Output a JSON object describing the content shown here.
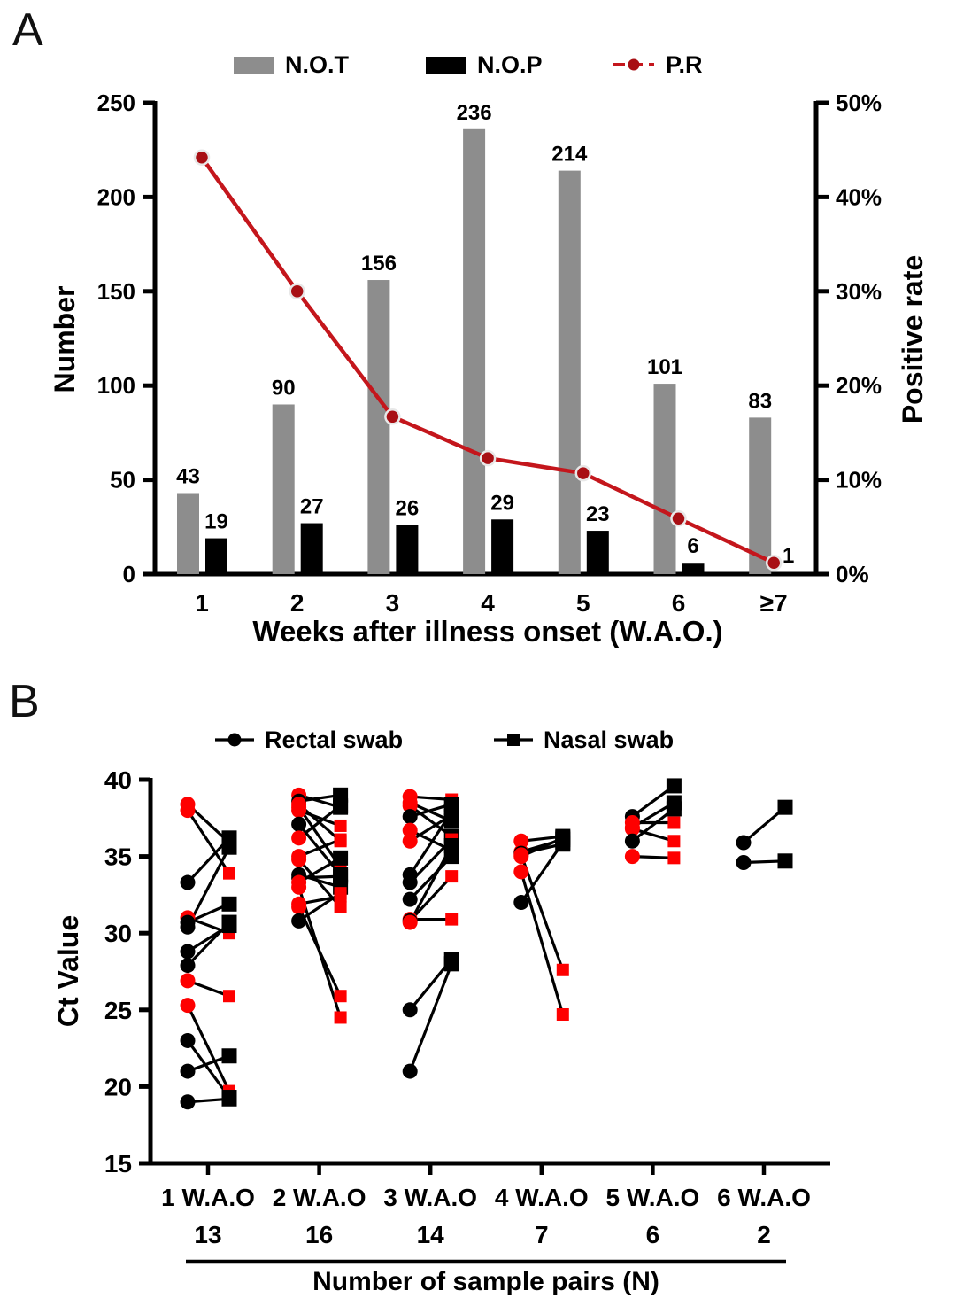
{
  "figure": {
    "panel_a": {
      "label": "A",
      "legend": {
        "not_label": "N.O.T",
        "nop_label": "N.O.P",
        "pr_label": "P.R"
      },
      "colors": {
        "not_bar": "#8D8D8D",
        "nop_bar": "#000000",
        "pr_line": "#C4161C",
        "pr_marker": "#A80F14",
        "pr_marker_ring": "#E8E8E8"
      }
    },
    "panel_b": {
      "label": "B",
      "legend": {
        "rectal_label": "Rectal swab",
        "nasal_label": "Nasal swab"
      },
      "colors": {
        "black": "#000000",
        "red": "#FE0000"
      }
    }
  },
  "chart_data": [
    {
      "id": "panel_a",
      "type": "bar",
      "categories": [
        "1",
        "2",
        "3",
        "4",
        "5",
        "6",
        "≥7"
      ],
      "series": [
        {
          "name": "N.O.T",
          "type": "bar",
          "color": "#8D8D8D",
          "values": [
            43,
            90,
            156,
            236,
            214,
            101,
            83
          ]
        },
        {
          "name": "N.O.P",
          "type": "bar",
          "color": "#000000",
          "values": [
            19,
            27,
            26,
            29,
            23,
            6,
            1
          ]
        },
        {
          "name": "P.R",
          "type": "line",
          "axis": "right",
          "color": "#C4161C",
          "values_pct": [
            44.2,
            30.0,
            16.7,
            12.3,
            10.7,
            5.9,
            1.2
          ]
        }
      ],
      "ylabel": "Number",
      "ylim": [
        0,
        250
      ],
      "yticks": [
        0,
        50,
        100,
        150,
        200,
        250
      ],
      "y2label": "Positive rate",
      "y2lim": [
        0,
        50
      ],
      "y2ticks": [
        {
          "value": 0,
          "label": "0%"
        },
        {
          "value": 10,
          "label": "10%"
        },
        {
          "value": 20,
          "label": "20%"
        },
        {
          "value": 30,
          "label": "30%"
        },
        {
          "value": 40,
          "label": "40%"
        },
        {
          "value": 50,
          "label": "50%"
        }
      ],
      "xlabel": "Weeks after illness onset (W.A.O.)",
      "grid": false,
      "legend_position": "top"
    },
    {
      "id": "panel_b",
      "type": "scatter",
      "subtype": "paired-lines",
      "ylabel": "Ct Value",
      "ylim": [
        15,
        40
      ],
      "yticks": [
        15,
        20,
        25,
        30,
        35,
        40
      ],
      "xlabel": "Number of sample pairs (N)",
      "series_labels": [
        "Rectal swab",
        "Nasal swab"
      ],
      "pair_format": [
        "rectal_ct",
        "rectal_color",
        "nasal_ct",
        "nasal_color"
      ],
      "groups": [
        {
          "label": "1 W.A.O",
          "n": 13,
          "pairs": [
            [
              38.4,
              "red",
              35.9,
              "black"
            ],
            [
              38.0,
              "red",
              33.9,
              "red"
            ],
            [
              33.3,
              "black",
              36.2,
              "black"
            ],
            [
              31.0,
              "red",
              30.0,
              "red"
            ],
            [
              30.7,
              "black",
              31.9,
              "black"
            ],
            [
              30.4,
              "black",
              35.6,
              "black"
            ],
            [
              28.8,
              "black",
              30.5,
              "black"
            ],
            [
              27.9,
              "black",
              30.7,
              "black"
            ],
            [
              26.9,
              "red",
              25.9,
              "red"
            ],
            [
              25.3,
              "red",
              19.7,
              "red"
            ],
            [
              23.0,
              "black",
              19.3,
              "black"
            ],
            [
              21.0,
              "black",
              22.0,
              "black"
            ],
            [
              19.0,
              "black",
              19.2,
              "black"
            ]
          ]
        },
        {
          "label": "2 W.A.O",
          "n": 16,
          "pairs": [
            [
              39.0,
              "red",
              38.2,
              "black"
            ],
            [
              38.6,
              "black",
              39.0,
              "black"
            ],
            [
              38.4,
              "red",
              36.0,
              "red"
            ],
            [
              38.2,
              "red",
              34.3,
              "red"
            ],
            [
              38.0,
              "red",
              37.0,
              "red"
            ],
            [
              37.1,
              "black",
              33.8,
              "black"
            ],
            [
              36.2,
              "red",
              38.3,
              "black"
            ],
            [
              35.0,
              "red",
              36.1,
              "red"
            ],
            [
              34.8,
              "red",
              31.7,
              "red"
            ],
            [
              33.8,
              "black",
              33.0,
              "black"
            ],
            [
              33.6,
              "black",
              33.7,
              "black"
            ],
            [
              33.3,
              "red",
              34.9,
              "black"
            ],
            [
              33.0,
              "red",
              24.5,
              "red"
            ],
            [
              31.9,
              "red",
              32.4,
              "red"
            ],
            [
              31.7,
              "red",
              25.9,
              "red"
            ],
            [
              30.8,
              "black",
              32.6,
              "red"
            ]
          ]
        },
        {
          "label": "3 W.A.O",
          "n": 14,
          "pairs": [
            [
              38.9,
              "red",
              38.7,
              "red"
            ],
            [
              38.5,
              "red",
              37.3,
              "black"
            ],
            [
              38.3,
              "red",
              36.3,
              "black"
            ],
            [
              37.6,
              "black",
              38.4,
              "black"
            ],
            [
              36.7,
              "red",
              35.4,
              "red"
            ],
            [
              36.0,
              "red",
              37.7,
              "black"
            ],
            [
              33.8,
              "black",
              37.9,
              "black"
            ],
            [
              33.3,
              "black",
              36.1,
              "red"
            ],
            [
              32.2,
              "black",
              35.0,
              "black"
            ],
            [
              30.9,
              "red",
              30.9,
              "red"
            ],
            [
              30.8,
              "black",
              33.7,
              "red"
            ],
            [
              30.7,
              "red",
              35.7,
              "black"
            ],
            [
              25.0,
              "black",
              28.3,
              "black"
            ],
            [
              21.0,
              "black",
              28.0,
              "black"
            ]
          ]
        },
        {
          "label": "4 W.A.O",
          "n": 7,
          "pairs": [
            [
              36.0,
              "red",
              36.3,
              "black"
            ],
            [
              35.3,
              "red",
              36.1,
              "black"
            ],
            [
              35.2,
              "black",
              35.8,
              "black"
            ],
            [
              35.1,
              "red",
              27.6,
              "red"
            ],
            [
              35.0,
              "red",
              36.2,
              "black"
            ],
            [
              34.0,
              "red",
              24.7,
              "red"
            ],
            [
              32.0,
              "black",
              35.9,
              "black"
            ]
          ]
        },
        {
          "label": "5 W.A.O",
          "n": 6,
          "pairs": [
            [
              37.6,
              "black",
              39.6,
              "black"
            ],
            [
              37.2,
              "red",
              37.2,
              "red"
            ],
            [
              36.9,
              "red",
              38.5,
              "black"
            ],
            [
              36.8,
              "red",
              36.0,
              "red"
            ],
            [
              36.0,
              "black",
              38.1,
              "black"
            ],
            [
              35.0,
              "red",
              34.9,
              "red"
            ]
          ]
        },
        {
          "label": "6 W.A.O",
          "n": 2,
          "pairs": [
            [
              35.9,
              "black",
              38.2,
              "black"
            ],
            [
              34.6,
              "black",
              34.7,
              "black"
            ]
          ]
        }
      ],
      "grid": false,
      "legend_position": "top"
    }
  ]
}
